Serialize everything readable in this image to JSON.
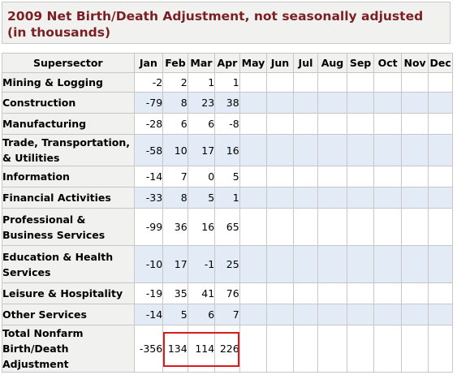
{
  "title": "2009 Net Birth/Death Adjustment, not seasonally adjusted (in thousands)",
  "table": {
    "header_label": "Supersector",
    "months": [
      "Jan",
      "Feb",
      "Mar",
      "Apr",
      "May",
      "Jun",
      "Jul",
      "Aug",
      "Sep",
      "Oct",
      "Nov",
      "Dec"
    ],
    "rows": [
      {
        "label": "Mining & Logging",
        "values": [
          "-2",
          "2",
          "1",
          "1"
        ]
      },
      {
        "label": "Construction",
        "values": [
          "-79",
          "8",
          "23",
          "38"
        ]
      },
      {
        "label": "Manufacturing",
        "values": [
          "-28",
          "6",
          "6",
          "-8"
        ]
      },
      {
        "label": "Trade, Transportation, & Utilities",
        "values": [
          "-58",
          "10",
          "17",
          "16"
        ]
      },
      {
        "label": "Information",
        "values": [
          "-14",
          "7",
          "0",
          "5"
        ]
      },
      {
        "label": "Financial Activities",
        "values": [
          "-33",
          "8",
          "5",
          "1"
        ]
      },
      {
        "label": "Professional & Business Services",
        "values": [
          "-99",
          "36",
          "16",
          "65"
        ]
      },
      {
        "label": "Education & Health Services",
        "values": [
          "-10",
          "17",
          "-1",
          "25"
        ]
      },
      {
        "label": "Leisure & Hospitality",
        "values": [
          "-19",
          "35",
          "41",
          "76"
        ]
      },
      {
        "label": "Other Services",
        "values": [
          "-14",
          "5",
          "6",
          "7"
        ]
      },
      {
        "label": "Total Nonfarm Birth/Death Adjustment",
        "values": [
          "-356",
          "134",
          "114",
          "226"
        ]
      }
    ]
  },
  "colors": {
    "title_text": "#7a1f24",
    "header_background": "#f1f1ef",
    "alternate_row": "#e3ebf7",
    "highlight_border": "#d81c1c"
  }
}
